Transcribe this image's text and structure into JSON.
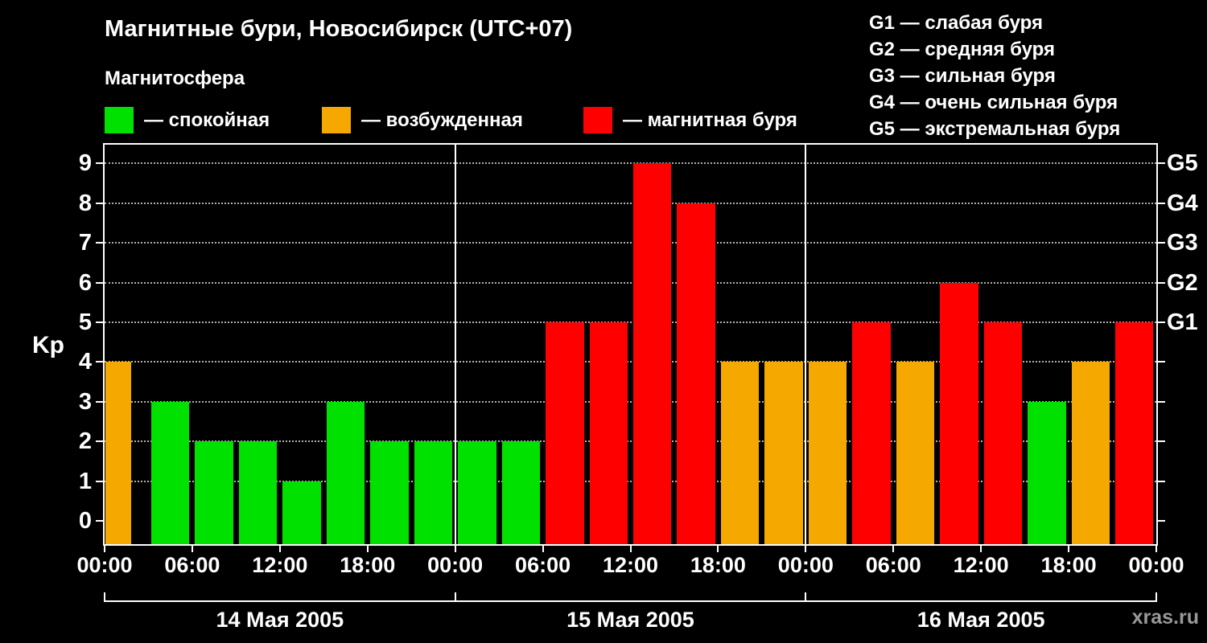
{
  "header": {
    "title": "Магнитные бури, Новосибирск (UTC+07)",
    "subtitle": "Магнитосфера",
    "legend": [
      {
        "state": "спокойная",
        "label": "— спокойная",
        "color": "#00e100"
      },
      {
        "state": "возбужденная",
        "label": "— возбужденная",
        "color": "#f5a800"
      },
      {
        "state": "магнитная буря",
        "label": "— магнитная буря",
        "color": "#ff0000"
      }
    ],
    "storm_scale": [
      "G1 — слабая буря",
      "G2 — средняя буря",
      "G3 — сильная буря",
      "G4 — очень сильная буря",
      "G5 — экстремальная буря"
    ]
  },
  "watermark": "xras.ru",
  "chart_data": {
    "type": "bar",
    "title": "Магнитные бури, Новосибирск (UTC+07)",
    "ylabel": "Kp",
    "ylim": [
      0,
      9
    ],
    "yticks": [
      0,
      1,
      2,
      3,
      4,
      5,
      6,
      7,
      8,
      9
    ],
    "grid": "dotted horizontal",
    "background": "#000000",
    "bar_interval_hours": 3,
    "x_tick_labels": [
      "00:00",
      "06:00",
      "12:00",
      "18:00",
      "00:00",
      "06:00",
      "12:00",
      "18:00",
      "00:00",
      "06:00",
      "12:00",
      "18:00",
      "00:00"
    ],
    "right_axis": [
      {
        "kp": 5,
        "label": "G1"
      },
      {
        "kp": 6,
        "label": "G2"
      },
      {
        "kp": 7,
        "label": "G3"
      },
      {
        "kp": 8,
        "label": "G4"
      },
      {
        "kp": 9,
        "label": "G5"
      }
    ],
    "colors": {
      "quiet": "#00e100",
      "excited": "#f5a800",
      "storm": "#ff0000"
    },
    "color_rules": {
      "excited_min": 4,
      "storm_min": 5
    },
    "days": [
      {
        "date": "14 Мая 2005",
        "kp": [
          4,
          3,
          2,
          2,
          1,
          3,
          2,
          2
        ]
      },
      {
        "date": "15 Мая 2005",
        "kp": [
          2,
          2,
          5,
          5,
          9,
          8,
          4,
          4
        ]
      },
      {
        "date": "16 Мая 2005",
        "kp": [
          4,
          5,
          4,
          6,
          5,
          3,
          4,
          5
        ]
      }
    ]
  }
}
